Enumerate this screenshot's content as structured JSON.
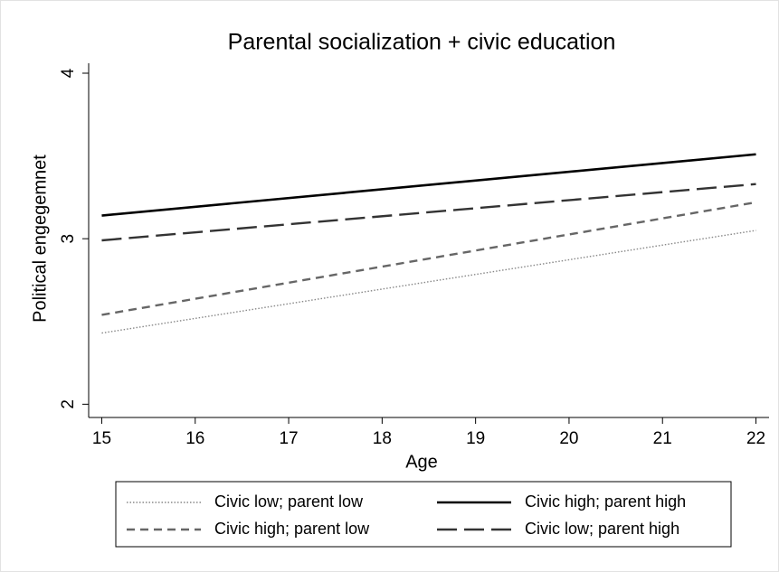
{
  "chart_data": {
    "type": "line",
    "title": "Parental socialization + civic education",
    "x_label": "Age",
    "y_label": "Political engegemnet",
    "xlim": [
      14.86,
      22.14
    ],
    "xticks": [
      15,
      16,
      17,
      18,
      19,
      20,
      21,
      22
    ],
    "ylim": [
      1.92,
      4.06
    ],
    "yticks": [
      2,
      3,
      4
    ],
    "series": [
      {
        "name": "Civic low; parent low",
        "color": "#888888",
        "style": "dotted",
        "x": [
          15,
          22
        ],
        "values": [
          2.43,
          3.05
        ]
      },
      {
        "name": "Civic high; parent high",
        "color": "#000000",
        "style": "solid",
        "x": [
          15,
          22
        ],
        "values": [
          3.14,
          3.51
        ]
      },
      {
        "name": "Civic high; parent low",
        "color": "#666666",
        "style": "dashed",
        "x": [
          15,
          22
        ],
        "values": [
          2.54,
          3.22
        ]
      },
      {
        "name": "Civic low; parent high",
        "color": "#333333",
        "style": "longdash",
        "x": [
          15,
          22
        ],
        "values": [
          2.99,
          3.33
        ]
      }
    ]
  }
}
